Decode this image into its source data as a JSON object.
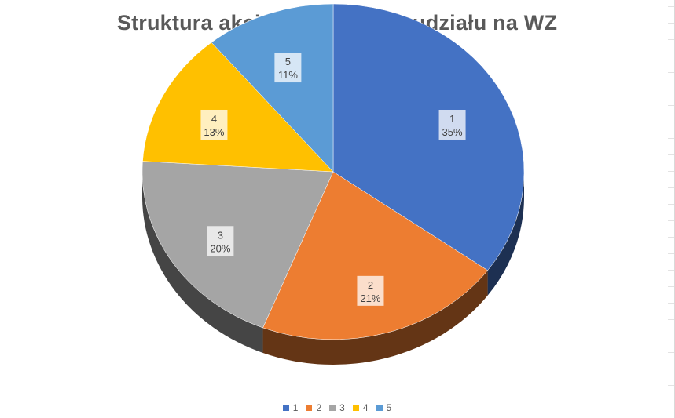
{
  "chart_data": {
    "type": "pie",
    "title": "Struktura akcjonariatu wg % udziału na WZ",
    "categories": [
      "1",
      "2",
      "3",
      "4",
      "5"
    ],
    "values": [
      35,
      21,
      20,
      13,
      11
    ],
    "value_labels": [
      "35%",
      "21%",
      "20%",
      "13%",
      "11%"
    ],
    "colors": [
      "#4472c4",
      "#ed7d31",
      "#a5a5a5",
      "#ffc000",
      "#5b9bd5"
    ],
    "style": "3d",
    "legend": "bottom"
  }
}
